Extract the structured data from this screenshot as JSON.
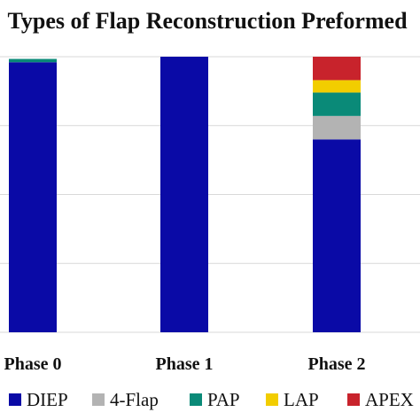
{
  "chart_data": {
    "type": "bar",
    "stacked": true,
    "title": "Types of Flap Reconstruction Preformed",
    "categories": [
      "Phase 0",
      "Phase 1",
      "Phase 2"
    ],
    "series": [
      {
        "name": "DIEP",
        "color": "#0a0aa6",
        "values": [
          98.0,
          100,
          70.0
        ]
      },
      {
        "name": "4-Flap",
        "color": "#b3b3b3",
        "values": [
          0,
          0,
          8.5
        ]
      },
      {
        "name": "PAP",
        "color": "#0a8a78",
        "values": [
          1.2,
          0,
          8.5
        ]
      },
      {
        "name": "LAP",
        "color": "#f2cd00",
        "values": [
          0,
          0,
          4.5
        ]
      },
      {
        "name": "APEX",
        "color": "#c8232c",
        "values": [
          0,
          0,
          8.5
        ]
      }
    ],
    "ylim": [
      0,
      100
    ],
    "grid": true,
    "legend_position": "bottom"
  }
}
